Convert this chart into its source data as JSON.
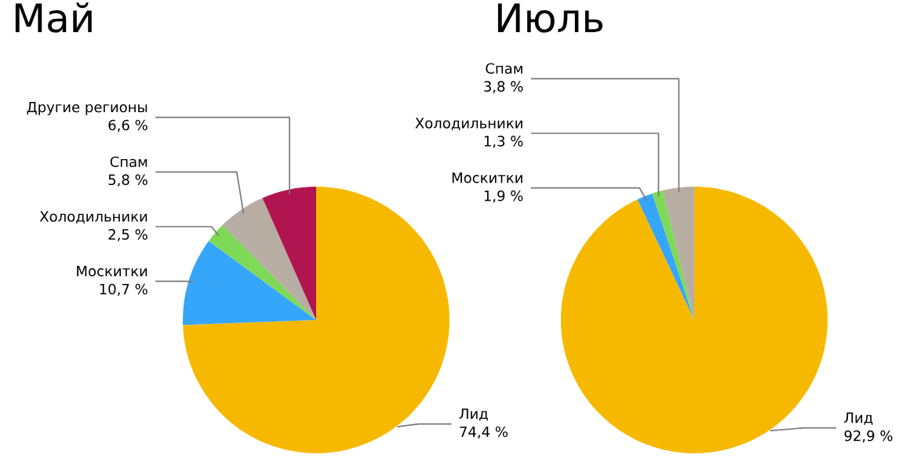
{
  "chart_data": [
    {
      "type": "pie",
      "title": "Май",
      "categories": [
        "Лид",
        "Москитки",
        "Холодильники",
        "Спам",
        "Другие регионы"
      ],
      "values": [
        74.4,
        10.7,
        2.5,
        5.8,
        6.6
      ],
      "colors": [
        "#f6b900",
        "#36a6fb",
        "#7ed957",
        "#b7ada2",
        "#b0154f"
      ],
      "value_labels": [
        "74,4 %",
        "10,7 %",
        "2,5 %",
        "5,8 %",
        "6,6 %"
      ]
    },
    {
      "type": "pie",
      "title": "Июль",
      "categories": [
        "Лид",
        "Москитки",
        "Холодильники",
        "Спам"
      ],
      "values": [
        92.9,
        1.9,
        1.3,
        3.8
      ],
      "colors": [
        "#f6b900",
        "#36a6fb",
        "#7ed957",
        "#b7ada2"
      ],
      "value_labels": [
        "92,9 %",
        "1,9 %",
        "1,3 %",
        "3,8 %"
      ]
    }
  ]
}
